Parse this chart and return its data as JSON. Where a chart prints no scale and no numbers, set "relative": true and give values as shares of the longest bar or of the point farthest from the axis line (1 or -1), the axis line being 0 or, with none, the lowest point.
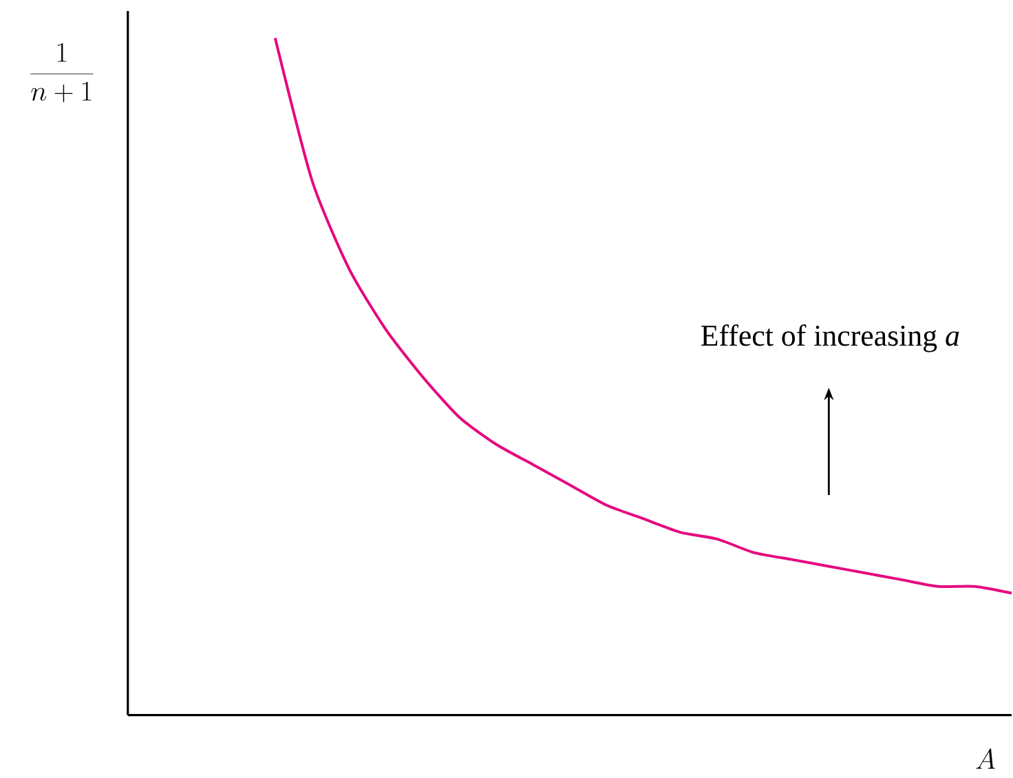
{
  "chart_data": {
    "type": "line",
    "relative": true,
    "ylabel": "\\frac{1}{n + 1}",
    "xlabel": "A",
    "categories": [
      null,
      null,
      null,
      null,
      null,
      null,
      null,
      null,
      null,
      null,
      null,
      null,
      null,
      null,
      null,
      null,
      null,
      null,
      null,
      null,
      null,
      null,
      null,
      null,
      null
    ],
    "series": [
      {
        "color": "#e5097f",
        "values": [
          null,
          null,
          null,
          null,
          1.0,
          0.79,
          0.66,
          0.57,
          0.5,
          0.44,
          0.4,
          0.37,
          0.34,
          0.31,
          0.29,
          0.27,
          0.26,
          0.24,
          0.23,
          0.22,
          0.21,
          0.2,
          0.19,
          0.19,
          0.18
        ]
      }
    ],
    "annotations": [
      "Effect of increasing *a*"
    ],
    "marker": "none",
    "line_style": "solid"
  }
}
